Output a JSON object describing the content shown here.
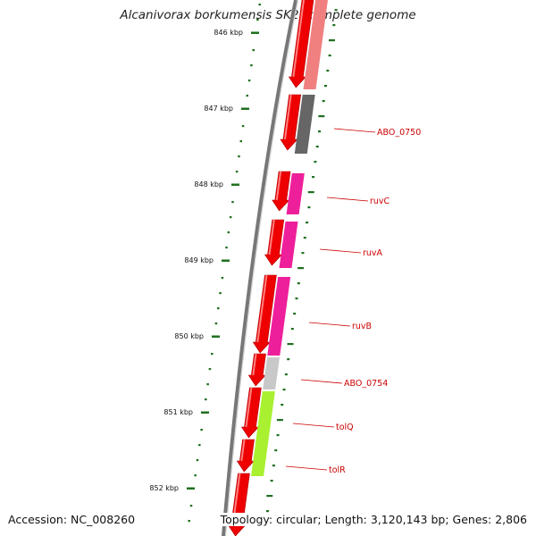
{
  "title": "Alcanivorax borkumensis SK2, complete genome",
  "accession": "Accession: NC_008260",
  "topology": "Topology: circular; Length: 3,120,143 bp; Genes: 2,806",
  "ticks": [
    "846 kbp",
    "847 kbp",
    "848 kbp",
    "849 kbp",
    "850 kbp",
    "851 kbp",
    "852 kbp"
  ],
  "genes": [
    {
      "label": "ABO_0750",
      "color": "#666666"
    },
    {
      "label": "ruvC",
      "color": "#ee1f9a"
    },
    {
      "label": "ruvA",
      "color": "#ee1f9a"
    },
    {
      "label": "ruvB",
      "color": "#ee1f9a"
    },
    {
      "label": "ABO_0754",
      "color": "#c8c8c8"
    },
    {
      "label": "tolQ",
      "color": "#a8f030"
    },
    {
      "label": "tolR",
      "color": "#a8f030"
    }
  ],
  "colors": {
    "cds_strand": "#ee0000",
    "top_gene": "#f08080",
    "tick": "#207020",
    "label": "#cc0000",
    "backbone": "#777777"
  }
}
